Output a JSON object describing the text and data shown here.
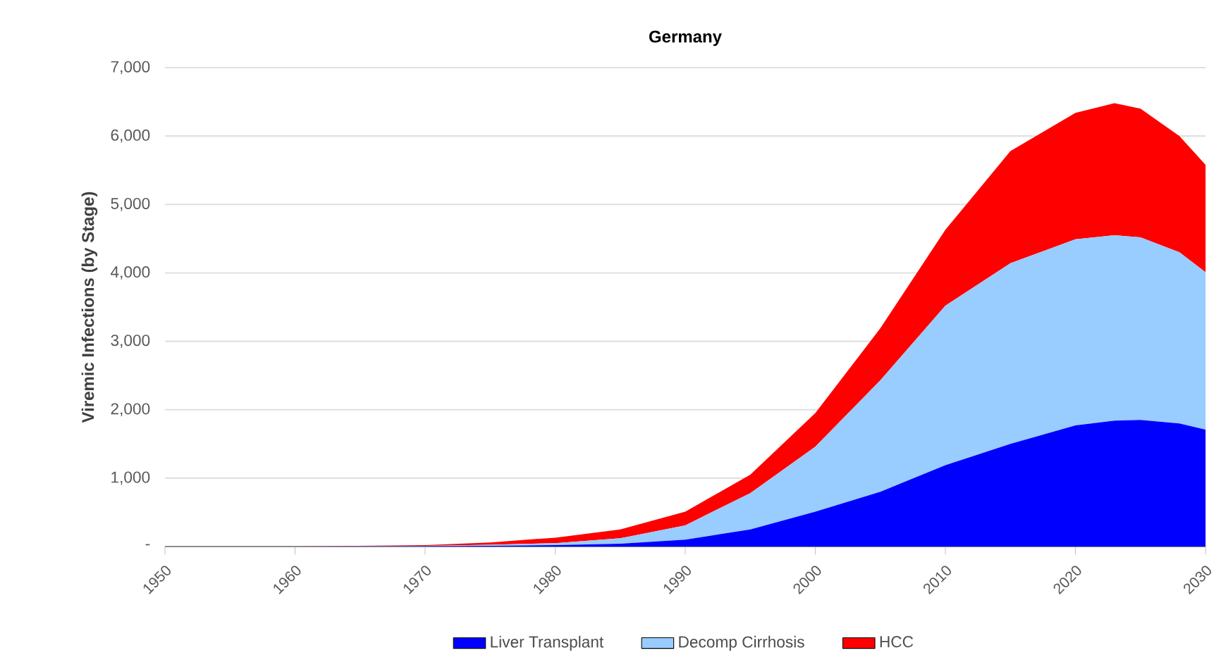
{
  "chart_data": {
    "type": "area",
    "title": "Germany",
    "ylabel": "Viremic Infections (by Stage)",
    "stacked": true,
    "x": [
      1950,
      1960,
      1970,
      1975,
      1980,
      1985,
      1990,
      1995,
      2000,
      2005,
      2010,
      2015,
      2020,
      2023,
      2025,
      2028,
      2030
    ],
    "series": [
      {
        "name": "Liver Transplant",
        "color": "#0000ff",
        "values": [
          0,
          0,
          5,
          10,
          20,
          40,
          100,
          250,
          510,
          800,
          1190,
          1500,
          1770,
          1840,
          1850,
          1800,
          1710
        ]
      },
      {
        "name": "Decomp Cirrhosis",
        "color": "#99ccff",
        "values": [
          0,
          0,
          5,
          15,
          30,
          80,
          210,
          530,
          950,
          1630,
          2330,
          2640,
          2720,
          2710,
          2670,
          2500,
          2300
        ]
      },
      {
        "name": "HCC",
        "color": "#ff0000",
        "values": [
          0,
          0,
          10,
          35,
          80,
          130,
          200,
          270,
          490,
          760,
          1110,
          1640,
          1850,
          1930,
          1880,
          1700,
          1570
        ]
      }
    ],
    "xlim": [
      1950,
      2030
    ],
    "xticks": [
      1950,
      1960,
      1970,
      1980,
      1990,
      2000,
      2010,
      2020,
      2030
    ],
    "ylim": [
      0,
      7000
    ],
    "yticks": [
      {
        "value": 0,
        "label": "-"
      },
      {
        "value": 1000,
        "label": "1,000"
      },
      {
        "value": 2000,
        "label": "2,000"
      },
      {
        "value": 3000,
        "label": "3,000"
      },
      {
        "value": 4000,
        "label": "4,000"
      },
      {
        "value": 5000,
        "label": "5,000"
      },
      {
        "value": 6000,
        "label": "6,000"
      },
      {
        "value": 7000,
        "label": "7,000"
      }
    ],
    "grid": "y",
    "legend": "bottom"
  }
}
